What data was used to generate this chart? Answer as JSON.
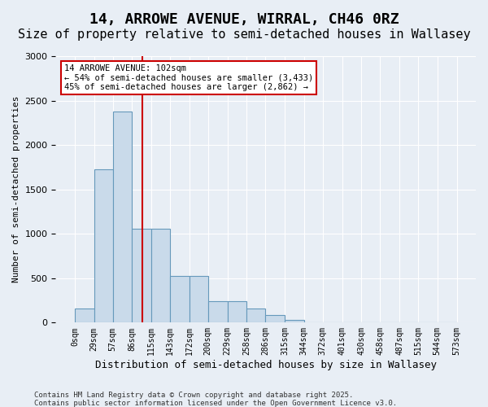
{
  "title_line1": "14, ARROWE AVENUE, WIRRAL, CH46 0RZ",
  "title_line2": "Size of property relative to semi-detached houses in Wallasey",
  "xlabel": "Distribution of semi-detached houses by size in Wallasey",
  "ylabel": "Number of semi-detached properties",
  "footnote1": "Contains HM Land Registry data © Crown copyright and database right 2025.",
  "footnote2": "Contains public sector information licensed under the Open Government Licence v3.0.",
  "annotation_title": "14 ARROWE AVENUE: 102sqm",
  "annotation_line2": "← 54% of semi-detached houses are smaller (3,433)",
  "annotation_line3": "45% of semi-detached houses are larger (2,862) →",
  "property_size": 102,
  "bin_edges": [
    0,
    29,
    57,
    86,
    115,
    143,
    172,
    200,
    229,
    258,
    286,
    315,
    344,
    372,
    401,
    430,
    458,
    487,
    515,
    544,
    573
  ],
  "bar_heights": [
    155,
    1730,
    2380,
    1060,
    1060,
    530,
    530,
    240,
    240,
    155,
    90,
    35,
    0,
    0,
    0,
    0,
    0,
    0,
    0,
    0
  ],
  "bar_color": "#c9daea",
  "bar_edge_color": "#6699bb",
  "vline_color": "#cc0000",
  "vline_x": 102,
  "ylim": [
    0,
    3000
  ],
  "yticks": [
    0,
    500,
    1000,
    1500,
    2000,
    2500,
    3000
  ],
  "bg_color": "#e8eef5",
  "grid_color": "#ffffff",
  "title_fontsize": 13,
  "subtitle_fontsize": 11,
  "annotation_box_color": "#ffffff",
  "annotation_box_edge": "#cc0000"
}
